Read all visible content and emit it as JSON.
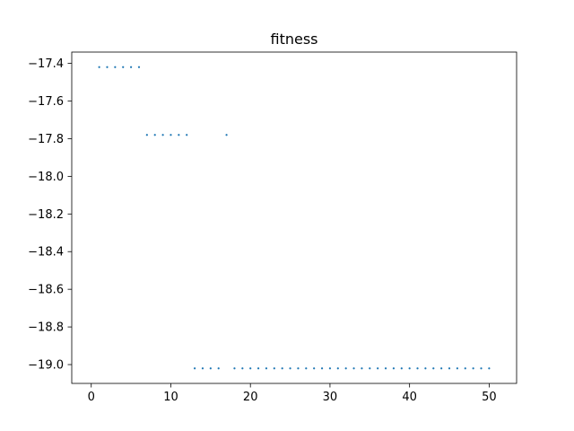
{
  "chart_data": {
    "type": "scatter",
    "title": "fitness",
    "xlabel": "",
    "ylabel": "",
    "xlim": [
      -2.45,
      53.45
    ],
    "ylim": [
      -19.1,
      -17.34
    ],
    "xticks": [
      0,
      10,
      20,
      30,
      40,
      50
    ],
    "xtick_labels": [
      "0",
      "10",
      "20",
      "30",
      "40",
      "50"
    ],
    "yticks": [
      -17.4,
      -17.6,
      -17.8,
      -18.0,
      -18.2,
      -18.4,
      -18.6,
      -18.8,
      -19.0
    ],
    "ytick_labels": [
      "−17.4",
      "−17.6",
      "−17.8",
      "−18.0",
      "−18.2",
      "−18.4",
      "−18.6",
      "−18.8",
      "−19.0"
    ],
    "grid": false,
    "legend": false,
    "marker_color": "#1f77b4",
    "series": [
      {
        "x": [
          1,
          2,
          3,
          4,
          5,
          6,
          7,
          8,
          9,
          10,
          11,
          12,
          13,
          14,
          15,
          16,
          17,
          18,
          19,
          20,
          21,
          22,
          23,
          24,
          25,
          26,
          27,
          28,
          29,
          30,
          31,
          32,
          33,
          34,
          35,
          36,
          37,
          38,
          39,
          40,
          41,
          42,
          43,
          44,
          45,
          46,
          47,
          48,
          49,
          50
        ],
        "y": [
          -17.42,
          -17.42,
          -17.42,
          -17.42,
          -17.42,
          -17.42,
          -17.78,
          -17.78,
          -17.78,
          -17.78,
          -17.78,
          -17.78,
          -19.02,
          -19.02,
          -19.02,
          -19.02,
          -17.78,
          -19.02,
          -19.02,
          -19.02,
          -19.02,
          -19.02,
          -19.02,
          -19.02,
          -19.02,
          -19.02,
          -19.02,
          -19.02,
          -19.02,
          -19.02,
          -19.02,
          -19.02,
          -19.02,
          -19.02,
          -19.02,
          -19.02,
          -19.02,
          -19.02,
          -19.02,
          -19.02,
          -19.02,
          -19.02,
          -19.02,
          -19.02,
          -19.02,
          -19.02,
          -19.02,
          -19.02,
          -19.02,
          -19.02
        ]
      }
    ]
  }
}
